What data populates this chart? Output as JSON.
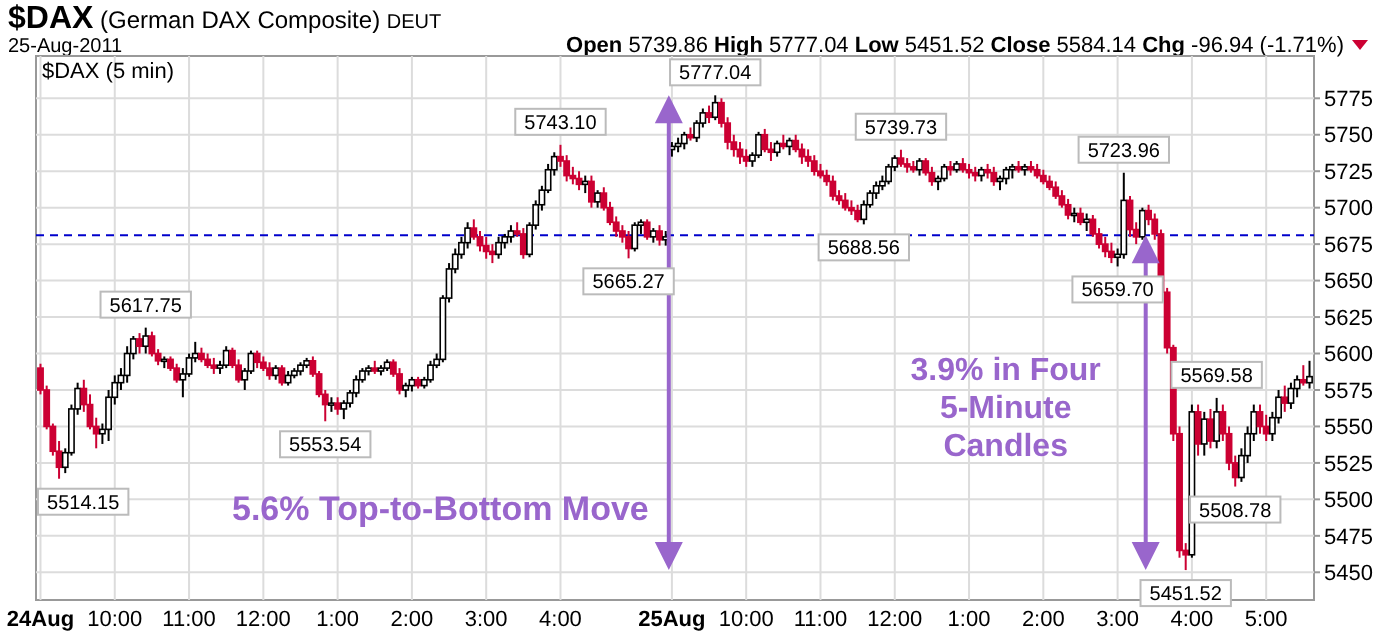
{
  "chart_data": {
    "type": "candlestick",
    "title": "$DAX (German DAX Composite) DEUT",
    "subtitle": "25-Aug-2011",
    "categories": [
      "24Aug",
      null,
      null,
      null,
      null,
      null,
      null,
      null,
      null,
      null,
      null,
      null,
      "10:00",
      null,
      null,
      null,
      null,
      null,
      null,
      null,
      null,
      null,
      null,
      null,
      "11:00",
      null,
      null,
      null,
      null,
      null,
      null,
      null,
      null,
      null,
      null,
      null,
      "12:00",
      null,
      null,
      null,
      null,
      null,
      null,
      null,
      null,
      null,
      null,
      null,
      "1:00",
      null,
      null,
      null,
      null,
      null,
      null,
      null,
      null,
      null,
      null,
      null,
      "2:00",
      null,
      null,
      null,
      null,
      null,
      null,
      null,
      null,
      null,
      null,
      null,
      "3:00",
      null,
      null,
      null,
      null,
      null,
      null,
      null,
      null,
      null,
      null,
      null,
      "4:00",
      null,
      null,
      null,
      null,
      null,
      null,
      null,
      null,
      null,
      null,
      null,
      null,
      null,
      null,
      null,
      null,
      null,
      "25Aug",
      null,
      null,
      null,
      null,
      null,
      null,
      null,
      null,
      null,
      null,
      null,
      "10:00",
      null,
      null,
      null,
      null,
      null,
      null,
      null,
      null,
      null,
      null,
      null,
      "11:00",
      null,
      null,
      null,
      null,
      null,
      null,
      null,
      null,
      null,
      null,
      null,
      "12:00",
      null,
      null,
      null,
      null,
      null,
      null,
      null,
      null,
      null,
      null,
      null,
      "1:00",
      null,
      null,
      null,
      null,
      null,
      null,
      null,
      null,
      null,
      null,
      null,
      "2:00",
      null,
      null,
      null,
      null,
      null,
      null,
      null,
      null,
      null,
      null,
      null,
      "3:00",
      null,
      null,
      null,
      null,
      null,
      null,
      null,
      null,
      null,
      null,
      null,
      "4:00",
      null,
      null,
      null,
      null,
      null,
      null,
      null,
      null,
      null,
      null,
      null,
      "5:00",
      null,
      null,
      null,
      null,
      null,
      null,
      null
    ],
    "ohlc": [
      [
        5590,
        5593,
        5572,
        5575
      ],
      [
        5575,
        5578,
        5548,
        5550
      ],
      [
        5550,
        5552,
        5530,
        5533
      ],
      [
        5533,
        5540,
        5514.15,
        5522
      ],
      [
        5522,
        5535,
        5518,
        5532
      ],
      [
        5532,
        5565,
        5530,
        5562
      ],
      [
        5562,
        5580,
        5558,
        5576
      ],
      [
        5576,
        5582,
        5560,
        5565
      ],
      [
        5565,
        5572,
        5548,
        5550
      ],
      [
        5550,
        5556,
        5535,
        5545
      ],
      [
        5545,
        5552,
        5538,
        5548
      ],
      [
        5548,
        5575,
        5540,
        5570
      ],
      [
        5570,
        5585,
        5565,
        5580
      ],
      [
        5580,
        5590,
        5575,
        5585
      ],
      [
        5585,
        5605,
        5580,
        5600
      ],
      [
        5600,
        5612,
        5596,
        5610
      ],
      [
        5610,
        5614,
        5600,
        5605
      ],
      [
        5605,
        5617.75,
        5600,
        5612
      ],
      [
        5612,
        5615,
        5598,
        5600
      ],
      [
        5600,
        5603,
        5592,
        5595
      ],
      [
        5595,
        5598,
        5590,
        5596
      ],
      [
        5596,
        5598,
        5588,
        5590
      ],
      [
        5590,
        5593,
        5580,
        5582
      ],
      [
        5582,
        5590,
        5570,
        5586
      ],
      [
        5586,
        5600,
        5584,
        5597
      ],
      [
        5597,
        5608,
        5594,
        5600
      ],
      [
        5600,
        5604,
        5594,
        5596
      ],
      [
        5596,
        5600,
        5590,
        5592
      ],
      [
        5592,
        5597,
        5586,
        5590
      ],
      [
        5590,
        5595,
        5586,
        5592
      ],
      [
        5592,
        5605,
        5590,
        5602
      ],
      [
        5602,
        5604,
        5590,
        5592
      ],
      [
        5592,
        5596,
        5580,
        5582
      ],
      [
        5582,
        5590,
        5575,
        5588
      ],
      [
        5588,
        5602,
        5586,
        5600
      ],
      [
        5600,
        5602,
        5590,
        5594
      ],
      [
        5594,
        5598,
        5588,
        5590
      ],
      [
        5590,
        5594,
        5582,
        5585
      ],
      [
        5585,
        5592,
        5582,
        5590
      ],
      [
        5590,
        5592,
        5578,
        5580
      ],
      [
        5580,
        5588,
        5578,
        5585
      ],
      [
        5585,
        5590,
        5583,
        5588
      ],
      [
        5588,
        5594,
        5585,
        5592
      ],
      [
        5592,
        5597,
        5590,
        5595
      ],
      [
        5595,
        5598,
        5584,
        5586
      ],
      [
        5586,
        5588,
        5570,
        5572
      ],
      [
        5572,
        5575,
        5553.54,
        5565
      ],
      [
        5565,
        5570,
        5560,
        5566
      ],
      [
        5566,
        5570,
        5558,
        5562
      ],
      [
        5562,
        5568,
        5555,
        5566
      ],
      [
        5566,
        5575,
        5563,
        5573
      ],
      [
        5573,
        5585,
        5570,
        5582
      ],
      [
        5582,
        5590,
        5580,
        5588
      ],
      [
        5588,
        5592,
        5585,
        5590
      ],
      [
        5590,
        5595,
        5586,
        5588
      ],
      [
        5588,
        5592,
        5585,
        5590
      ],
      [
        5590,
        5596,
        5588,
        5594
      ],
      [
        5594,
        5596,
        5584,
        5586
      ],
      [
        5586,
        5590,
        5572,
        5575
      ],
      [
        5575,
        5580,
        5570,
        5578
      ],
      [
        5578,
        5584,
        5574,
        5582
      ],
      [
        5582,
        5584,
        5576,
        5578
      ],
      [
        5578,
        5584,
        5576,
        5582
      ],
      [
        5582,
        5595,
        5580,
        5592
      ],
      [
        5592,
        5600,
        5590,
        5596
      ],
      [
        5596,
        5640,
        5594,
        5638
      ],
      [
        5638,
        5662,
        5635,
        5658
      ],
      [
        5658,
        5672,
        5655,
        5668
      ],
      [
        5668,
        5680,
        5665,
        5676
      ],
      [
        5676,
        5690,
        5672,
        5686
      ],
      [
        5686,
        5692,
        5678,
        5680
      ],
      [
        5680,
        5684,
        5670,
        5674
      ],
      [
        5674,
        5680,
        5665,
        5670
      ],
      [
        5670,
        5675,
        5662,
        5668
      ],
      [
        5668,
        5680,
        5665,
        5676
      ],
      [
        5676,
        5682,
        5672,
        5680
      ],
      [
        5680,
        5688,
        5676,
        5684
      ],
      [
        5684,
        5690,
        5680,
        5682
      ],
      [
        5682,
        5686,
        5665,
        5668
      ],
      [
        5668,
        5690,
        5666,
        5688
      ],
      [
        5688,
        5705,
        5685,
        5702
      ],
      [
        5702,
        5715,
        5698,
        5712
      ],
      [
        5712,
        5730,
        5710,
        5726
      ],
      [
        5726,
        5738,
        5722,
        5735
      ],
      [
        5735,
        5743.1,
        5728,
        5732
      ],
      [
        5732,
        5736,
        5718,
        5722
      ],
      [
        5722,
        5728,
        5716,
        5720
      ],
      [
        5720,
        5725,
        5712,
        5716
      ],
      [
        5716,
        5722,
        5710,
        5718
      ],
      [
        5718,
        5722,
        5700,
        5704
      ],
      [
        5704,
        5712,
        5700,
        5710
      ],
      [
        5710,
        5714,
        5698,
        5700
      ],
      [
        5700,
        5704,
        5688,
        5690
      ],
      [
        5690,
        5694,
        5680,
        5684
      ],
      [
        5684,
        5688,
        5676,
        5680
      ],
      [
        5680,
        5684,
        5665.27,
        5672
      ],
      [
        5672,
        5690,
        5670,
        5688
      ],
      [
        5688,
        5692,
        5682,
        5690
      ],
      [
        5690,
        5692,
        5678,
        5680
      ],
      [
        5680,
        5686,
        5676,
        5684
      ],
      [
        5684,
        5688,
        5674,
        5678
      ],
      [
        5678,
        5684,
        5674,
        5680
      ],
      [
        5739.86,
        5745,
        5735,
        5742
      ],
      [
        5742,
        5748,
        5738,
        5744
      ],
      [
        5744,
        5752,
        5740,
        5750
      ],
      [
        5750,
        5755,
        5746,
        5748
      ],
      [
        5748,
        5760,
        5745,
        5758
      ],
      [
        5758,
        5768,
        5755,
        5765
      ],
      [
        5765,
        5770,
        5758,
        5762
      ],
      [
        5762,
        5777.04,
        5760,
        5772
      ],
      [
        5772,
        5775,
        5755,
        5758
      ],
      [
        5758,
        5762,
        5740,
        5745
      ],
      [
        5745,
        5750,
        5735,
        5740
      ],
      [
        5740,
        5745,
        5730,
        5735
      ],
      [
        5735,
        5740,
        5728,
        5732
      ],
      [
        5732,
        5738,
        5728,
        5736
      ],
      [
        5736,
        5752,
        5734,
        5750
      ],
      [
        5750,
        5754,
        5738,
        5740
      ],
      [
        5740,
        5745,
        5732,
        5738
      ],
      [
        5738,
        5746,
        5735,
        5744
      ],
      [
        5744,
        5750,
        5740,
        5742
      ],
      [
        5742,
        5748,
        5736,
        5746
      ],
      [
        5746,
        5750,
        5738,
        5740
      ],
      [
        5740,
        5744,
        5730,
        5735
      ],
      [
        5735,
        5740,
        5728,
        5732
      ],
      [
        5732,
        5736,
        5722,
        5725
      ],
      [
        5725,
        5730,
        5720,
        5722
      ],
      [
        5722,
        5726,
        5715,
        5718
      ],
      [
        5718,
        5722,
        5705,
        5708
      ],
      [
        5708,
        5712,
        5702,
        5705
      ],
      [
        5705,
        5710,
        5698,
        5700
      ],
      [
        5700,
        5705,
        5695,
        5698
      ],
      [
        5698,
        5702,
        5690,
        5692
      ],
      [
        5692,
        5705,
        5688.56,
        5702
      ],
      [
        5702,
        5712,
        5700,
        5710
      ],
      [
        5710,
        5718,
        5706,
        5715
      ],
      [
        5715,
        5722,
        5712,
        5718
      ],
      [
        5718,
        5730,
        5716,
        5728
      ],
      [
        5728,
        5736,
        5725,
        5734
      ],
      [
        5734,
        5739.73,
        5728,
        5730
      ],
      [
        5730,
        5734,
        5724,
        5728
      ],
      [
        5728,
        5732,
        5724,
        5726
      ],
      [
        5726,
        5734,
        5722,
        5732
      ],
      [
        5732,
        5734,
        5722,
        5724
      ],
      [
        5724,
        5728,
        5715,
        5718
      ],
      [
        5718,
        5722,
        5712,
        5720
      ],
      [
        5720,
        5730,
        5718,
        5728
      ],
      [
        5728,
        5732,
        5722,
        5726
      ],
      [
        5726,
        5732,
        5724,
        5730
      ],
      [
        5730,
        5734,
        5724,
        5726
      ],
      [
        5726,
        5730,
        5720,
        5724
      ],
      [
        5724,
        5728,
        5718,
        5722
      ],
      [
        5722,
        5728,
        5718,
        5726
      ],
      [
        5726,
        5730,
        5720,
        5724
      ],
      [
        5724,
        5728,
        5715,
        5718
      ],
      [
        5718,
        5722,
        5712,
        5720
      ],
      [
        5720,
        5728,
        5716,
        5726
      ],
      [
        5726,
        5730,
        5720,
        5728
      ],
      [
        5728,
        5732,
        5724,
        5726
      ],
      [
        5726,
        5730,
        5722,
        5728
      ],
      [
        5728,
        5732,
        5724,
        5726
      ],
      [
        5726,
        5730,
        5720,
        5722
      ],
      [
        5722,
        5726,
        5716,
        5718
      ],
      [
        5718,
        5722,
        5712,
        5714
      ],
      [
        5714,
        5718,
        5706,
        5708
      ],
      [
        5708,
        5712,
        5700,
        5702
      ],
      [
        5702,
        5706,
        5692,
        5695
      ],
      [
        5695,
        5700,
        5690,
        5696
      ],
      [
        5696,
        5700,
        5688,
        5690
      ],
      [
        5690,
        5696,
        5684,
        5692
      ],
      [
        5692,
        5695,
        5680,
        5682
      ],
      [
        5682,
        5686,
        5672,
        5675
      ],
      [
        5675,
        5680,
        5666,
        5670
      ],
      [
        5670,
        5676,
        5662,
        5666
      ],
      [
        5666,
        5672,
        5659.7,
        5668
      ],
      [
        5668,
        5723.96,
        5665,
        5705
      ],
      [
        5705,
        5708,
        5680,
        5685
      ],
      [
        5685,
        5690,
        5675,
        5680
      ],
      [
        5680,
        5700,
        5678,
        5698
      ],
      [
        5698,
        5702,
        5688,
        5692
      ],
      [
        5692,
        5696,
        5678,
        5682
      ],
      [
        5682,
        5685,
        5640,
        5642
      ],
      [
        5642,
        5645,
        5600,
        5604
      ],
      [
        5604,
        5606,
        5540,
        5545
      ],
      [
        5545,
        5550,
        5460,
        5465
      ],
      [
        5465,
        5470,
        5451.52,
        5462
      ],
      [
        5462,
        5565,
        5460,
        5560
      ],
      [
        5560,
        5565,
        5530,
        5538
      ],
      [
        5538,
        5560,
        5530,
        5555
      ],
      [
        5555,
        5562,
        5535,
        5540
      ],
      [
        5540,
        5569.58,
        5535,
        5560
      ],
      [
        5560,
        5565,
        5540,
        5545
      ],
      [
        5545,
        5550,
        5520,
        5525
      ],
      [
        5525,
        5530,
        5508.78,
        5515
      ],
      [
        5515,
        5535,
        5512,
        5530
      ],
      [
        5530,
        5550,
        5525,
        5545
      ],
      [
        5545,
        5565,
        5540,
        5560
      ],
      [
        5560,
        5565,
        5545,
        5550
      ],
      [
        5550,
        5558,
        5540,
        5545
      ],
      [
        5545,
        5560,
        5540,
        5556
      ],
      [
        5556,
        5575,
        5552,
        5570
      ],
      [
        5570,
        5578,
        5560,
        5566
      ],
      [
        5566,
        5580,
        5562,
        5576
      ],
      [
        5576,
        5585,
        5570,
        5582
      ],
      [
        5582,
        5592,
        5578,
        5580
      ],
      [
        5580,
        5595,
        5576,
        5584.14
      ]
    ],
    "value_labels": [
      null,
      null,
      null,
      "5514.15",
      null,
      null,
      null,
      null,
      null,
      null,
      null,
      null,
      null,
      null,
      null,
      null,
      null,
      "5617.75",
      null,
      null,
      null,
      null,
      null,
      null,
      null,
      null,
      null,
      null,
      null,
      null,
      null,
      null,
      null,
      null,
      null,
      null,
      null,
      null,
      null,
      null,
      null,
      null,
      null,
      null,
      null,
      null,
      "5553.54",
      null,
      null,
      null,
      null,
      null,
      null,
      null,
      null,
      null,
      null,
      null,
      null,
      null,
      null,
      null,
      null,
      null,
      null,
      null,
      null,
      null,
      null,
      null,
      null,
      null,
      null,
      null,
      null,
      null,
      null,
      null,
      null,
      null,
      null,
      null,
      null,
      null,
      "5743.10",
      null,
      null,
      null,
      null,
      null,
      null,
      null,
      null,
      null,
      null,
      "5665.27",
      null,
      null,
      null,
      null,
      null,
      null,
      null,
      null,
      null,
      null,
      null,
      null,
      null,
      "5777.04",
      null,
      null,
      null,
      null,
      null,
      null,
      null,
      null,
      null,
      null,
      null,
      null,
      null,
      null,
      null,
      null,
      null,
      null,
      null,
      null,
      null,
      null,
      null,
      "5688.56",
      null,
      null,
      null,
      null,
      null,
      "5739.73",
      null,
      null,
      null,
      null,
      null,
      null,
      null,
      null,
      null,
      null,
      null,
      null,
      null,
      null,
      null,
      null,
      null,
      null,
      null,
      null,
      null,
      null,
      null,
      null,
      null,
      null,
      null,
      null,
      null,
      null,
      null,
      null,
      null,
      null,
      "5659.70",
      "5723.96",
      null,
      null,
      null,
      null,
      null,
      null,
      null,
      null,
      null,
      "5451.52",
      null,
      null,
      null,
      null,
      "5569.58",
      null,
      null,
      "5508.78",
      null,
      null,
      null,
      null,
      null,
      null,
      null,
      null,
      null,
      null,
      null,
      null
    ],
    "ylim": [
      5431,
      5804
    ],
    "yticks": [
      5450,
      5475,
      5500,
      5525,
      5550,
      5575,
      5600,
      5625,
      5650,
      5675,
      5700,
      5725,
      5750,
      5775
    ],
    "grid": true,
    "ref_lines": [
      {
        "axis": "y",
        "value": 5681.08,
        "color": "#0000cc",
        "line_style": "dashed"
      }
    ],
    "annotations": [
      "$DAX (5 min)",
      "Open 5739.86 High 5777.04 Low 5451.52 Close 5584.14 Chg -96.94 (-1.71%)",
      "5.6% Top-to-Bottom Move",
      "3.9% in Four 5-Minute Candles"
    ]
  }
}
